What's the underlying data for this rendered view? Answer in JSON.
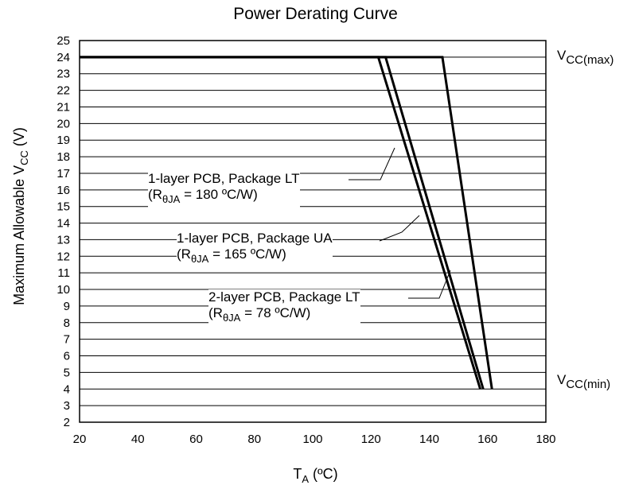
{
  "chart_data": {
    "type": "line",
    "title": "Power Derating Curve",
    "ylabel": {
      "main": "Maximum Allowable V",
      "sub": "CC",
      "unit": " (V)"
    },
    "xlabel": {
      "main": "T",
      "sub": "A",
      "unit": " (ºC)"
    },
    "xlim": [
      20,
      180
    ],
    "ylim": [
      2,
      25
    ],
    "xticks": [
      20,
      40,
      60,
      80,
      100,
      120,
      140,
      160,
      180
    ],
    "yticks": [
      2,
      3,
      4,
      5,
      6,
      7,
      8,
      9,
      10,
      11,
      12,
      13,
      14,
      15,
      16,
      17,
      18,
      19,
      20,
      21,
      22,
      23,
      24,
      25
    ],
    "grid": "horizontal",
    "series": [
      {
        "name": "2-layer PCB, Package LT",
        "x": [
          20,
          144.5,
          161.5
        ],
        "y": [
          24,
          24,
          4
        ]
      },
      {
        "name": "1-layer PCB, Package UA",
        "x": [
          20,
          125,
          158.5
        ],
        "y": [
          24,
          24,
          4
        ]
      },
      {
        "name": "1-layer PCB, Package LT",
        "x": [
          20,
          122.5,
          157.5
        ],
        "y": [
          24,
          24,
          4
        ]
      }
    ],
    "annotations": {
      "vcc_max": {
        "main": "V",
        "sub": "CC(max)"
      },
      "vcc_min": {
        "main": "V",
        "sub": "CC(min)"
      },
      "labels": [
        {
          "line1": "1-layer PCB, Package LT",
          "line2_pre": "(R",
          "line2_sub": "θJA",
          "line2_post": " = 180 ºC/W)"
        },
        {
          "line1": "1-layer PCB, Package UA",
          "line2_pre": "(R",
          "line2_sub": "θJA",
          "line2_post": " = 165 ºC/W)"
        },
        {
          "line1": "2-layer PCB, Package LT",
          "line2_pre": "(R",
          "line2_sub": "θJA",
          "line2_post": " = 78 ºC/W)"
        }
      ]
    }
  }
}
